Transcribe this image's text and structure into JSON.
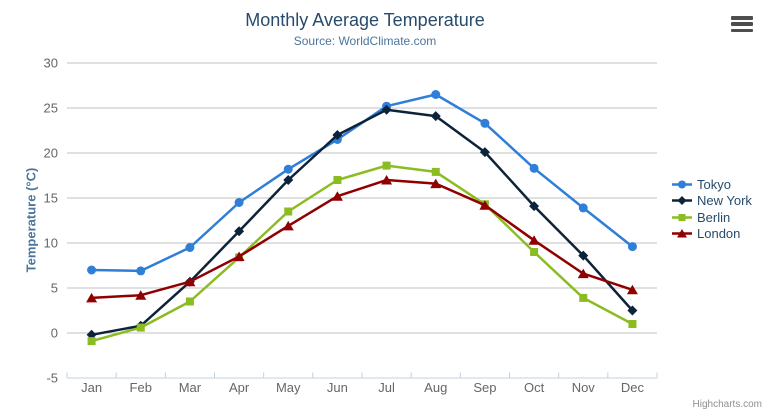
{
  "header": {
    "title": "Monthly Average Temperature",
    "subtitle": "Source: WorldClimate.com"
  },
  "icons": {
    "export_menu": "hamburger-menu"
  },
  "credits": {
    "label": "Highcharts.com"
  },
  "chart_data": {
    "type": "line",
    "title": "Monthly Average Temperature",
    "subtitle": "Source: WorldClimate.com",
    "categories": [
      "Jan",
      "Feb",
      "Mar",
      "Apr",
      "May",
      "Jun",
      "Jul",
      "Aug",
      "Sep",
      "Oct",
      "Nov",
      "Dec"
    ],
    "series": [
      {
        "name": "Tokyo",
        "color": "#2f7ed8",
        "marker": "circle",
        "values": [
          7.0,
          6.9,
          9.5,
          14.5,
          18.2,
          21.5,
          25.2,
          26.5,
          23.3,
          18.3,
          13.9,
          9.6
        ]
      },
      {
        "name": "New York",
        "color": "#0d233a",
        "marker": "diamond",
        "values": [
          -0.2,
          0.8,
          5.7,
          11.3,
          17.0,
          22.0,
          24.8,
          24.1,
          20.1,
          14.1,
          8.6,
          2.5
        ]
      },
      {
        "name": "Berlin",
        "color": "#8bbc21",
        "marker": "square",
        "values": [
          -0.9,
          0.6,
          3.5,
          8.4,
          13.5,
          17.0,
          18.6,
          17.9,
          14.3,
          9.0,
          3.9,
          1.0
        ]
      },
      {
        "name": "London",
        "color": "#910000",
        "marker": "triangle",
        "values": [
          3.9,
          4.2,
          5.7,
          8.5,
          11.9,
          15.2,
          17.0,
          16.6,
          14.2,
          10.3,
          6.6,
          4.8
        ]
      }
    ],
    "xlabel": "",
    "ylabel": "Temperature (°C)",
    "ylim": [
      -5,
      30
    ],
    "ytick_step": 5,
    "grid": true,
    "legend_position": "right",
    "colors": {
      "grid_line": "#c0c0c0",
      "axis_line": "#c0d0e0",
      "axis_label": "#666666",
      "title": "#274b6d",
      "subtitle": "#4d759e"
    }
  }
}
